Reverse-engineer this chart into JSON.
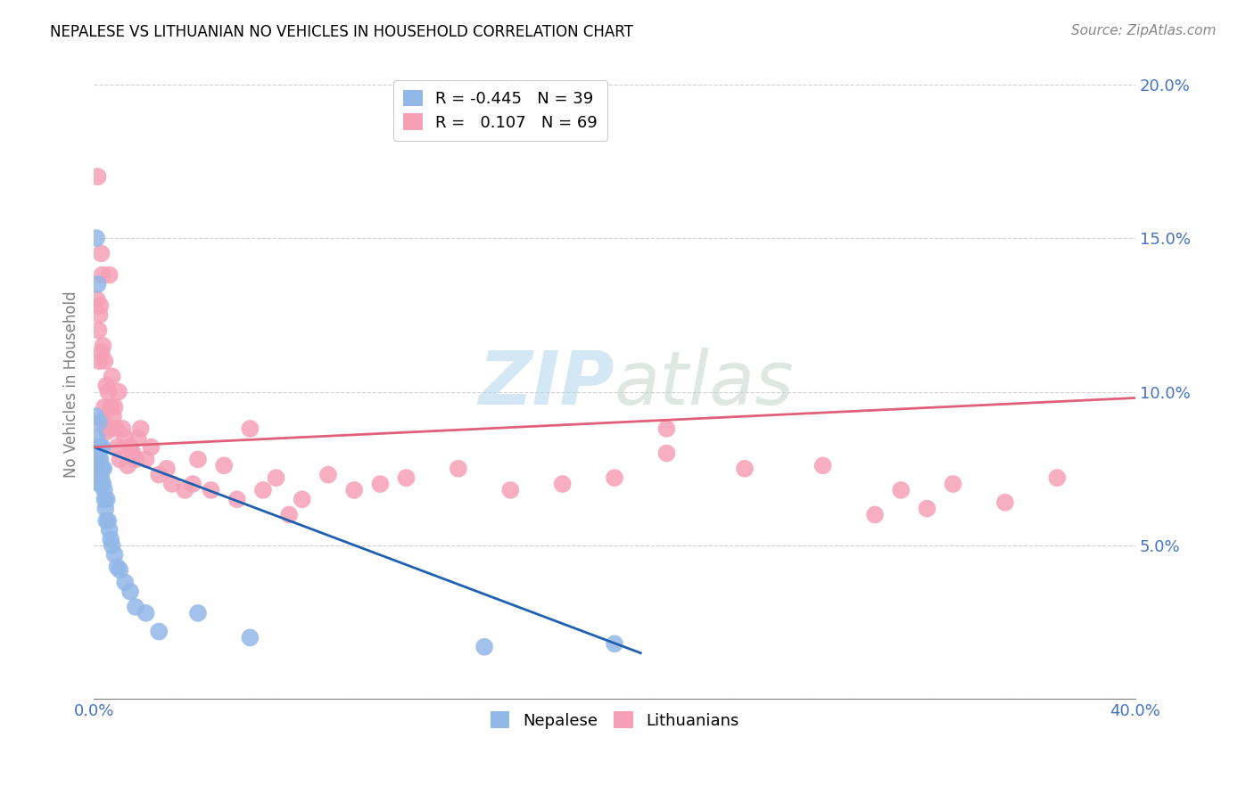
{
  "title": "NEPALESE VS LITHUANIAN NO VEHICLES IN HOUSEHOLD CORRELATION CHART",
  "source": "Source: ZipAtlas.com",
  "ylabel": "No Vehicles in Household",
  "xlim": [
    0.0,
    0.4
  ],
  "ylim": [
    0.0,
    0.205
  ],
  "xticks": [
    0.0,
    0.05,
    0.1,
    0.15,
    0.2,
    0.25,
    0.3,
    0.35,
    0.4
  ],
  "yticks": [
    0.0,
    0.05,
    0.1,
    0.15,
    0.2
  ],
  "ytick_labels": [
    "",
    "5.0%",
    "10.0%",
    "15.0%",
    "20.0%"
  ],
  "xtick_labels": [
    "0.0%",
    "",
    "",
    "",
    "",
    "",
    "",
    "",
    "40.0%"
  ],
  "nepalese_color": "#92b8e8",
  "lithuanian_color": "#f5a0b5",
  "nepalese_line_color": "#2060b0",
  "lithuanian_line_color": "#e0607a",
  "legend_label1": "R = -0.445   N = 39",
  "legend_label2": "R =   0.107   N = 69",
  "nepalese_x": [
    0.0008,
    0.0008,
    0.001,
    0.0012,
    0.0015,
    0.0015,
    0.0018,
    0.002,
    0.002,
    0.0022,
    0.0025,
    0.0025,
    0.0028,
    0.003,
    0.003,
    0.0032,
    0.0035,
    0.0038,
    0.004,
    0.0042,
    0.0045,
    0.0048,
    0.005,
    0.0055,
    0.006,
    0.0065,
    0.007,
    0.008,
    0.009,
    0.01,
    0.012,
    0.014,
    0.016,
    0.02,
    0.025,
    0.04,
    0.06,
    0.15,
    0.2
  ],
  "nepalese_y": [
    0.08,
    0.092,
    0.15,
    0.085,
    0.075,
    0.135,
    0.082,
    0.078,
    0.09,
    0.07,
    0.082,
    0.078,
    0.072,
    0.075,
    0.07,
    0.082,
    0.07,
    0.075,
    0.068,
    0.065,
    0.062,
    0.058,
    0.065,
    0.058,
    0.055,
    0.052,
    0.05,
    0.047,
    0.043,
    0.042,
    0.038,
    0.035,
    0.03,
    0.028,
    0.022,
    0.028,
    0.02,
    0.017,
    0.018
  ],
  "lithuanian_x": [
    0.001,
    0.0012,
    0.0015,
    0.0018,
    0.002,
    0.0022,
    0.0025,
    0.0028,
    0.003,
    0.0032,
    0.0035,
    0.0038,
    0.004,
    0.0042,
    0.0045,
    0.0048,
    0.005,
    0.0055,
    0.006,
    0.0065,
    0.007,
    0.0075,
    0.008,
    0.0085,
    0.009,
    0.0095,
    0.01,
    0.011,
    0.012,
    0.013,
    0.014,
    0.015,
    0.016,
    0.017,
    0.018,
    0.02,
    0.022,
    0.025,
    0.028,
    0.03,
    0.035,
    0.038,
    0.04,
    0.045,
    0.05,
    0.055,
    0.06,
    0.065,
    0.07,
    0.075,
    0.08,
    0.09,
    0.1,
    0.11,
    0.12,
    0.14,
    0.16,
    0.18,
    0.2,
    0.22,
    0.25,
    0.28,
    0.31,
    0.33,
    0.35,
    0.37,
    0.22,
    0.3,
    0.32
  ],
  "lithuanian_y": [
    0.076,
    0.13,
    0.17,
    0.12,
    0.11,
    0.125,
    0.128,
    0.145,
    0.113,
    0.138,
    0.115,
    0.09,
    0.095,
    0.11,
    0.088,
    0.102,
    0.087,
    0.1,
    0.138,
    0.095,
    0.105,
    0.092,
    0.095,
    0.088,
    0.082,
    0.1,
    0.078,
    0.088,
    0.085,
    0.076,
    0.082,
    0.08,
    0.078,
    0.085,
    0.088,
    0.078,
    0.082,
    0.073,
    0.075,
    0.07,
    0.068,
    0.07,
    0.078,
    0.068,
    0.076,
    0.065,
    0.088,
    0.068,
    0.072,
    0.06,
    0.065,
    0.073,
    0.068,
    0.07,
    0.072,
    0.075,
    0.068,
    0.07,
    0.072,
    0.08,
    0.075,
    0.076,
    0.068,
    0.07,
    0.064,
    0.072,
    0.088,
    0.06,
    0.062
  ]
}
